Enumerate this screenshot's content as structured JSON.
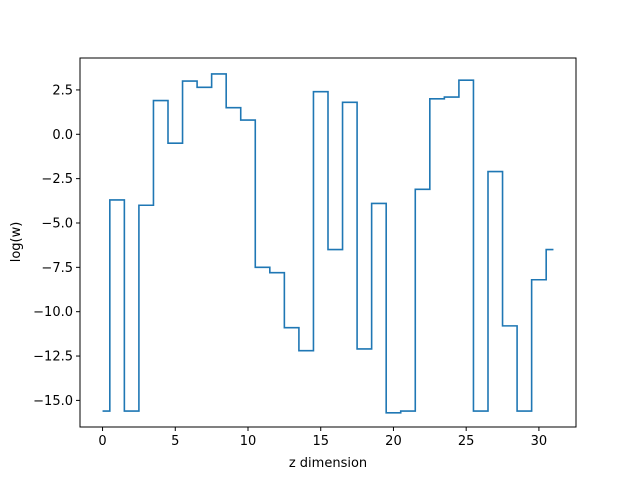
{
  "chart_data": {
    "type": "line",
    "drawstyle": "steps-mid",
    "title": "",
    "xlabel": "z dimension",
    "ylabel": "log(w)",
    "xlim": [
      -1.55,
      32.55
    ],
    "ylim": [
      -16.5,
      4.3
    ],
    "xticks": [
      0,
      5,
      10,
      15,
      20,
      25,
      30
    ],
    "xtick_labels": [
      "0",
      "5",
      "10",
      "15",
      "20",
      "25",
      "30"
    ],
    "yticks": [
      2.5,
      0.0,
      -2.5,
      -5.0,
      -7.5,
      -10.0,
      -12.5,
      -15.0
    ],
    "ytick_labels": [
      "2.5",
      "0.0",
      "−2.5",
      "−5.0",
      "−7.5",
      "−10.0",
      "−12.5",
      "−15.0"
    ],
    "grid": false,
    "series": [
      {
        "color": "#1f77b4",
        "x": [
          0,
          1,
          2,
          3,
          4,
          5,
          6,
          7,
          8,
          9,
          10,
          11,
          12,
          13,
          14,
          15,
          16,
          17,
          18,
          19,
          20,
          21,
          22,
          23,
          24,
          25,
          26,
          27,
          28,
          29,
          30,
          31
        ],
        "y": [
          -15.6,
          -3.7,
          -15.6,
          -4.0,
          1.9,
          -0.5,
          3.0,
          2.65,
          3.4,
          1.5,
          0.8,
          -7.5,
          -7.8,
          -10.9,
          -12.2,
          2.4,
          -6.5,
          1.8,
          -12.1,
          -3.9,
          -15.7,
          -15.6,
          -3.1,
          2.0,
          2.1,
          3.05,
          -15.6,
          -2.1,
          -10.8,
          -15.6,
          -8.2,
          -6.5
        ]
      }
    ]
  }
}
